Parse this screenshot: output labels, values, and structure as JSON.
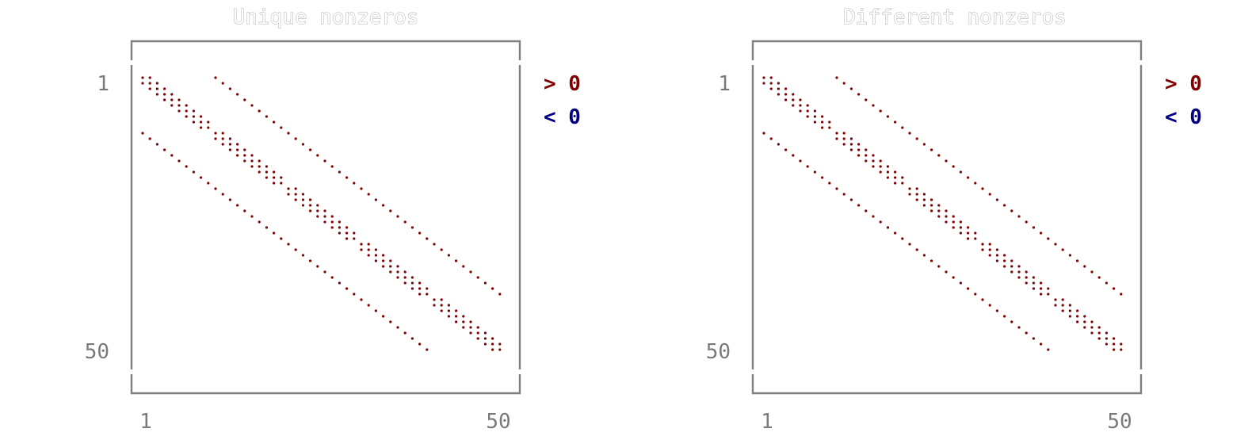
{
  "colors": {
    "positive": "#7f0000",
    "negative": "#00007f",
    "frame": "#7f7f7f",
    "ticks": "#7a7a7a"
  },
  "chart_data": [
    {
      "type": "scatter",
      "title": "Unique nonzeros",
      "rows": 50,
      "cols": 50,
      "xticks": [
        "1",
        "50"
      ],
      "yticks": [
        "1",
        "50"
      ],
      "legend": [
        {
          "symbol": ">",
          "value": "0"
        },
        {
          "symbol": "<",
          "value": "0"
        }
      ],
      "legend_position": "right",
      "grid": false,
      "pattern": "5-point stencil (10x5 grid); offsets 0, ±1, ±10",
      "stencil": {
        "blocks": 5,
        "block_size": 10,
        "diag_offsets": [
          -1,
          0,
          1
        ],
        "off_offsets": [
          -10,
          10
        ]
      },
      "negative_count": 0
    },
    {
      "type": "scatter",
      "title": "Different nonzeros",
      "rows": 50,
      "cols": 50,
      "xticks": [
        "1",
        "50"
      ],
      "yticks": [
        "1",
        "50"
      ],
      "legend": [
        {
          "symbol": ">",
          "value": "0"
        },
        {
          "symbol": "<",
          "value": "0"
        }
      ],
      "legend_position": "right",
      "grid": false,
      "pattern": "5-point stencil (10x5 grid); offsets 0, ±1, ±10",
      "stencil": {
        "blocks": 5,
        "block_size": 10,
        "diag_offsets": [
          -1,
          0,
          1
        ],
        "off_offsets": [
          -10,
          10
        ]
      },
      "negative_count": 0
    }
  ]
}
